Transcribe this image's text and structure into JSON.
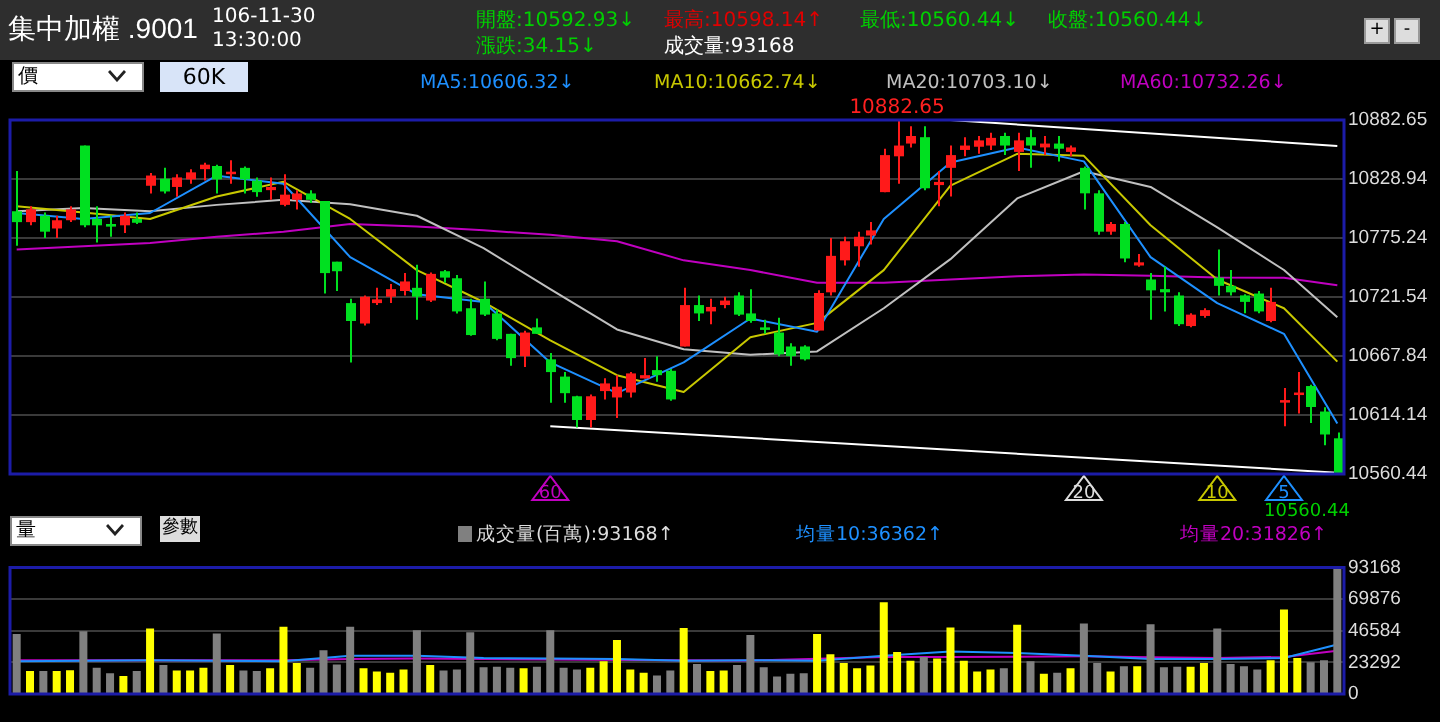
{
  "chart_data": [
    {
      "type": "candlestick",
      "title": "集中加權 .9001",
      "subtitle": "106-11-30 13:30:00",
      "annotations": [
        "開盤:10592.93↓",
        "最高:10598.14↑",
        "最低:10560.44↓",
        "收盤:10560.44↓",
        "漲跌:34.15↓",
        "成交量:93168",
        "價",
        "60K",
        "+",
        "-",
        {
          "text": "10882.65",
          "y": 10882.65
        },
        "10560.44",
        "60",
        "20",
        "10",
        "5"
      ],
      "categories": [
        null,
        null,
        null,
        null,
        null,
        null,
        null,
        null,
        null,
        null,
        null,
        null,
        null,
        null,
        null,
        null,
        null,
        null,
        null,
        null,
        null,
        null,
        null,
        null,
        null,
        null,
        null,
        null,
        null,
        null,
        null,
        null,
        null,
        null,
        null,
        null,
        null,
        null,
        null,
        null,
        null,
        null,
        null,
        null,
        null,
        null,
        null,
        null,
        null,
        null,
        null,
        null,
        null,
        null,
        null,
        null,
        null,
        null,
        null,
        null,
        null,
        null,
        null,
        null,
        null,
        null,
        null,
        null,
        null,
        null,
        null,
        null,
        null,
        null,
        null,
        null,
        null,
        null,
        null,
        null,
        null,
        null,
        null,
        null,
        null,
        null,
        null,
        null,
        null,
        null,
        null,
        null,
        null,
        null,
        null,
        null,
        null,
        null,
        null,
        null
      ],
      "ohlc": [
        [
          10799.6,
          10836.2,
          10768.3,
          10789.7
        ],
        [
          10789.7,
          10804.2,
          10786.8,
          10801.3
        ],
        [
          10795.5,
          10798.4,
          10775.2,
          10781.0
        ],
        [
          10783.9,
          10795.5,
          10775.2,
          10791.4
        ],
        [
          10791.4,
          10804.2,
          10789.7,
          10801.3
        ],
        [
          10859.4,
          10859.4,
          10785.0,
          10786.8
        ],
        [
          10792.6,
          10804.2,
          10771.1,
          10786.8
        ],
        [
          10788.0,
          10795.5,
          10776.3,
          10785.6
        ],
        [
          10786.8,
          10798.4,
          10779.9,
          10795.5
        ],
        [
          10792.6,
          10798.4,
          10788.0,
          10789.1
        ],
        [
          10822.8,
          10834.4,
          10815.8,
          10832.1
        ],
        [
          10829.2,
          10839.1,
          10815.8,
          10817.6
        ],
        [
          10821.7,
          10833.3,
          10812.9,
          10830.4
        ],
        [
          10828.6,
          10837.9,
          10824.6,
          10835.0
        ],
        [
          10837.9,
          10843.7,
          10827.5,
          10842.0
        ],
        [
          10840.8,
          10842.0,
          10815.8,
          10828.6
        ],
        [
          10833.3,
          10846.1,
          10824.6,
          10835.6
        ],
        [
          10839.1,
          10840.3,
          10815.8,
          10828.6
        ],
        [
          10827.5,
          10830.4,
          10812.9,
          10817.0
        ],
        [
          10818.8,
          10830.4,
          10810.0,
          10821.7
        ],
        [
          10805.4,
          10833.3,
          10804.2,
          10814.7
        ],
        [
          10810.0,
          10818.8,
          10801.3,
          10815.8
        ],
        [
          10815.8,
          10818.8,
          10807.1,
          10810.0
        ],
        [
          10808.9,
          10808.9,
          10724.7,
          10743.3
        ],
        [
          10753.7,
          10753.7,
          10727.0,
          10745.0
        ],
        [
          10716.0,
          10720.0,
          10662.0,
          10699.7
        ],
        [
          10697.4,
          10722.9,
          10695.7,
          10721.8
        ],
        [
          10716.0,
          10729.9,
          10714.2,
          10719.4
        ],
        [
          10721.8,
          10733.4,
          10716.0,
          10728.7
        ],
        [
          10727.0,
          10743.3,
          10722.9,
          10735.7
        ],
        [
          10729.9,
          10750.8,
          10700.9,
          10721.8
        ],
        [
          10718.3,
          10743.8,
          10717.1,
          10742.6
        ],
        [
          10745.0,
          10746.1,
          10734.5,
          10739.2
        ],
        [
          10738.6,
          10741.5,
          10706.6,
          10708.4
        ],
        [
          10711.3,
          10720.0,
          10686.3,
          10686.9
        ],
        [
          10720.0,
          10735.7,
          10704.3,
          10705.5
        ],
        [
          10706.6,
          10710.1,
          10682.2,
          10683.4
        ],
        [
          10688.0,
          10688.0,
          10659.0,
          10665.9
        ],
        [
          10667.7,
          10690.9,
          10657.8,
          10689.2
        ],
        [
          10693.9,
          10702.0,
          10688.0,
          10688.0
        ],
        [
          10664.8,
          10670.6,
          10625.3,
          10653.2
        ],
        [
          10649.1,
          10653.2,
          10625.3,
          10634.0
        ],
        [
          10631.2,
          10631.7,
          10602.7,
          10609.6
        ],
        [
          10609.6,
          10632.9,
          10602.7,
          10631.2
        ],
        [
          10635.9,
          10647.5,
          10628.3,
          10642.9
        ],
        [
          10630.1,
          10650.4,
          10611.5,
          10639.9
        ],
        [
          10634.6,
          10653.2,
          10630.1,
          10652.0
        ],
        [
          10647.4,
          10666.0,
          10647.4,
          10650.4
        ],
        [
          10655.0,
          10667.7,
          10644.5,
          10650.4
        ],
        [
          10654.4,
          10656.1,
          10627.1,
          10628.3
        ],
        [
          10676.5,
          10729.9,
          10676.5,
          10714.2
        ],
        [
          10714.2,
          10722.9,
          10699.7,
          10706.6
        ],
        [
          10708.4,
          10720.0,
          10696.8,
          10712.5
        ],
        [
          10714.2,
          10721.8,
          10711.3,
          10718.3
        ],
        [
          10722.9,
          10725.8,
          10704.3,
          10705.5
        ],
        [
          10706.6,
          10728.7,
          10698.0,
          10699.7
        ],
        [
          10693.9,
          10700.9,
          10688.0,
          10691.6
        ],
        [
          10689.2,
          10702.6,
          10667.7,
          10669.4
        ],
        [
          10676.5,
          10679.4,
          10659.0,
          10667.7
        ],
        [
          10676.5,
          10677.7,
          10663.7,
          10664.8
        ],
        [
          10691.0,
          10727.6,
          10691.0,
          10725.2
        ],
        [
          10725.8,
          10775.2,
          10723.0,
          10759.0
        ],
        [
          10754.9,
          10776.4,
          10750.3,
          10772.3
        ],
        [
          10767.7,
          10781.0,
          10749.1,
          10776.4
        ],
        [
          10777.5,
          10789.7,
          10769.4,
          10782.2
        ],
        [
          10817.0,
          10856.5,
          10817.0,
          10850.7
        ],
        [
          10849.6,
          10882.65,
          10824.6,
          10859.4
        ],
        [
          10861.2,
          10876.9,
          10857.7,
          10868.1
        ],
        [
          10867.0,
          10876.9,
          10818.8,
          10820.5
        ],
        [
          10823.4,
          10836.2,
          10804.2,
          10826.3
        ],
        [
          10839.1,
          10859.4,
          10813.0,
          10850.7
        ],
        [
          10855.4,
          10867.0,
          10849.6,
          10859.4
        ],
        [
          10858.3,
          10868.1,
          10851.9,
          10864.1
        ],
        [
          10859.4,
          10871.0,
          10855.4,
          10866.4
        ],
        [
          10868.1,
          10871.0,
          10850.7,
          10859.4
        ],
        [
          10853.6,
          10871.0,
          10836.2,
          10864.1
        ],
        [
          10867.0,
          10874.0,
          10839.1,
          10859.4
        ],
        [
          10857.7,
          10868.1,
          10850.7,
          10861.2
        ],
        [
          10861.2,
          10868.1,
          10844.9,
          10856.5
        ],
        [
          10853.6,
          10859.4,
          10849.6,
          10857.7
        ],
        [
          10839.1,
          10840.3,
          10801.3,
          10815.9
        ],
        [
          10815.9,
          10818.8,
          10778.1,
          10781.0
        ],
        [
          10781.0,
          10789.7,
          10778.1,
          10788.0
        ],
        [
          10788.0,
          10789.7,
          10753.1,
          10756.6
        ],
        [
          10750.2,
          10760.7,
          10749.1,
          10753.1
        ],
        [
          10737.5,
          10743.3,
          10700.9,
          10727.6
        ],
        [
          10728.7,
          10749.1,
          10708.4,
          10725.8
        ],
        [
          10722.9,
          10725.8,
          10695.1,
          10696.8
        ],
        [
          10695.1,
          10706.7,
          10693.9,
          10705.5
        ],
        [
          10704.3,
          10711.3,
          10702.6,
          10709.6
        ],
        [
          10739.2,
          10764.7,
          10722.9,
          10731.7
        ],
        [
          10731.7,
          10746.1,
          10722.9,
          10725.8
        ],
        [
          10723.0,
          10724.0,
          10706.7,
          10717.1
        ],
        [
          10724.7,
          10727.0,
          10706.7,
          10708.4
        ],
        [
          10699.7,
          10729.9,
          10698.5,
          10717.1
        ],
        [
          10625.4,
          10638.8,
          10603.9,
          10627.7
        ],
        [
          10632.3,
          10653.2,
          10615.5,
          10634.6
        ],
        [
          10640.5,
          10641.6,
          10606.8,
          10621.4
        ],
        [
          10617.3,
          10621.3,
          10586.5,
          10596.4
        ],
        [
          10592.93,
          10598.14,
          10560.44,
          10560.44
        ]
      ],
      "series": [
        {
          "type": "line",
          "name": "MA5:10606.32↓",
          "color": "#1e90ff",
          "values": [
            10798,
            null,
            null,
            null,
            null,
            10792.6,
            null,
            null,
            null,
            null,
            10798,
            null,
            null,
            null,
            null,
            10832,
            null,
            null,
            null,
            null,
            10824.6,
            null,
            null,
            null,
            null,
            10757.8,
            null,
            null,
            null,
            null,
            10724,
            null,
            null,
            null,
            null,
            10717,
            null,
            null,
            null,
            null,
            10662,
            null,
            null,
            null,
            null,
            10634,
            null,
            null,
            null,
            null,
            10662,
            null,
            null,
            null,
            null,
            10702,
            null,
            null,
            null,
            null,
            10690,
            null,
            null,
            null,
            null,
            10792.6,
            null,
            null,
            null,
            null,
            10844,
            null,
            null,
            null,
            null,
            10857.7,
            null,
            null,
            null,
            null,
            10845,
            null,
            null,
            null,
            null,
            10757.8,
            null,
            null,
            null,
            null,
            10716,
            null,
            null,
            null,
            null,
            10688,
            null,
            null,
            null,
            10606.32
          ]
        },
        {
          "type": "line",
          "name": "MA10:10662.74↓",
          "color": "#c8c800",
          "values": [
            10804.2,
            null,
            null,
            null,
            null,
            10798.4,
            null,
            null,
            null,
            null,
            10792.6,
            null,
            null,
            null,
            null,
            10813,
            null,
            null,
            null,
            null,
            10826.4,
            null,
            null,
            null,
            null,
            10792.6,
            null,
            null,
            null,
            null,
            10746,
            null,
            null,
            null,
            null,
            10717,
            null,
            null,
            null,
            null,
            10682,
            null,
            null,
            null,
            null,
            10650.4,
            null,
            null,
            null,
            null,
            10635,
            null,
            null,
            null,
            null,
            10685,
            null,
            null,
            null,
            null,
            10698,
            null,
            null,
            null,
            null,
            10746,
            null,
            null,
            null,
            null,
            10823,
            null,
            null,
            null,
            null,
            10851.9,
            null,
            null,
            null,
            null,
            10850,
            null,
            null,
            null,
            null,
            10786.8,
            null,
            null,
            null,
            null,
            10737.5,
            null,
            null,
            null,
            null,
            10711.3,
            null,
            null,
            null,
            10662.74
          ]
        },
        {
          "type": "line",
          "name": "MA20:10703.10↓",
          "color": "#c0c0c0",
          "values": [
            10799.6,
            null,
            null,
            null,
            null,
            10802.5,
            null,
            null,
            null,
            null,
            10799.6,
            null,
            null,
            null,
            null,
            10805.4,
            null,
            null,
            null,
            null,
            10810,
            null,
            null,
            null,
            null,
            10806,
            null,
            null,
            null,
            null,
            10795.5,
            null,
            null,
            null,
            null,
            10766,
            null,
            null,
            null,
            null,
            10728.7,
            null,
            null,
            null,
            null,
            10692,
            null,
            null,
            null,
            null,
            10674,
            null,
            null,
            null,
            null,
            10669,
            null,
            null,
            null,
            null,
            10672,
            null,
            null,
            null,
            null,
            10711.3,
            null,
            null,
            null,
            null,
            10756,
            null,
            null,
            null,
            null,
            10811.3,
            null,
            null,
            null,
            null,
            10836,
            null,
            null,
            null,
            null,
            10821.7,
            null,
            null,
            null,
            null,
            10785,
            null,
            null,
            null,
            null,
            10746.1,
            null,
            null,
            null,
            10703.1
          ]
        },
        {
          "type": "line",
          "name": "MA60:10732.26↓",
          "color": "#c000c0",
          "values": [
            10764.8,
            null,
            null,
            null,
            null,
            10767.7,
            null,
            null,
            null,
            null,
            10770.6,
            null,
            null,
            null,
            null,
            10776.4,
            null,
            null,
            null,
            null,
            10781,
            null,
            null,
            null,
            null,
            10788,
            null,
            null,
            null,
            null,
            10785.7,
            null,
            null,
            null,
            null,
            10782.2,
            null,
            null,
            null,
            null,
            10778.1,
            null,
            null,
            null,
            null,
            10772.3,
            null,
            null,
            null,
            null,
            10754.9,
            null,
            null,
            null,
            null,
            10746.1,
            null,
            null,
            null,
            null,
            10734.5,
            null,
            null,
            null,
            null,
            10734.5,
            null,
            null,
            null,
            null,
            10737.5,
            null,
            null,
            null,
            null,
            10740.4,
            null,
            null,
            null,
            null,
            10742.1,
            null,
            null,
            null,
            null,
            10741,
            null,
            null,
            null,
            null,
            10739.2,
            null,
            null,
            null,
            null,
            10739,
            null,
            null,
            null,
            10732.26
          ]
        },
        {
          "type": "line",
          "color": "#ffffff",
          "values": [
            null,
            null,
            null,
            null,
            null,
            null,
            null,
            null,
            null,
            null,
            null,
            null,
            null,
            null,
            null,
            null,
            null,
            null,
            null,
            null,
            null,
            null,
            null,
            null,
            null,
            null,
            null,
            null,
            null,
            null,
            null,
            null,
            null,
            null,
            null,
            null,
            null,
            null,
            null,
            null,
            null,
            null,
            null,
            null,
            null,
            null,
            null,
            null,
            null,
            null,
            null,
            null,
            null,
            null,
            null,
            null,
            null,
            null,
            null,
            null,
            null,
            null,
            null,
            null,
            null,
            null,
            null,
            null,
            null,
            null,
            10882.65,
            null,
            null,
            null,
            null,
            null,
            null,
            null,
            null,
            null,
            null,
            null,
            null,
            null,
            null,
            null,
            null,
            null,
            null,
            null,
            null,
            null,
            null,
            null,
            null,
            null,
            null,
            null,
            null,
            10859
          ]
        },
        {
          "type": "line",
          "color": "#ffffff",
          "values": [
            null,
            null,
            null,
            null,
            null,
            null,
            null,
            null,
            null,
            null,
            null,
            null,
            null,
            null,
            null,
            null,
            null,
            null,
            null,
            null,
            null,
            null,
            null,
            null,
            null,
            null,
            null,
            null,
            null,
            null,
            null,
            null,
            null,
            null,
            null,
            null,
            null,
            null,
            null,
            null,
            10603.9,
            null,
            null,
            null,
            null,
            null,
            null,
            null,
            null,
            null,
            null,
            null,
            null,
            null,
            null,
            null,
            null,
            null,
            null,
            null,
            null,
            null,
            null,
            null,
            null,
            null,
            null,
            null,
            null,
            null,
            null,
            null,
            null,
            null,
            null,
            null,
            null,
            null,
            null,
            null,
            null,
            null,
            null,
            null,
            null,
            null,
            null,
            null,
            null,
            null,
            null,
            null,
            null,
            null,
            null,
            null,
            null,
            null,
            null,
            10561.6
          ]
        }
      ],
      "ylim": [
        10560.44,
        10882.65
      ],
      "yticks": [
        10560.44,
        10614.14,
        10667.84,
        10721.54,
        10775.24,
        10828.94,
        10882.65
      ],
      "grid": "y",
      "legend": "top",
      "tick_labels": "y"
    },
    {
      "type": "bar",
      "annotations": [
        "量",
        "參數"
      ],
      "categories": [
        null,
        null,
        null,
        null,
        null,
        null,
        null,
        null,
        null,
        null,
        null,
        null,
        null,
        null,
        null,
        null,
        null,
        null,
        null,
        null,
        null,
        null,
        null,
        null,
        null,
        null,
        null,
        null,
        null,
        null,
        null,
        null,
        null,
        null,
        null,
        null,
        null,
        null,
        null,
        null,
        null,
        null,
        null,
        null,
        null,
        null,
        null,
        null,
        null,
        null,
        null,
        null,
        null,
        null,
        null,
        null,
        null,
        null,
        null,
        null,
        null,
        null,
        null,
        null,
        null,
        null,
        null,
        null,
        null,
        null,
        null,
        null,
        null,
        null,
        null,
        null,
        null,
        null,
        null,
        null,
        null,
        null,
        null,
        null,
        null,
        null,
        null,
        null,
        null,
        null,
        null,
        null,
        null,
        null,
        null,
        null,
        null,
        null,
        null,
        null
      ],
      "series": [
        {
          "name": "成交量(百萬):93168↑",
          "values": [
            44200,
            16870,
            16870,
            16870,
            17500,
            46190,
            19280,
            15260,
            13260,
            16870,
            48200,
            21290,
            17270,
            17270,
            19280,
            44580,
            21290,
            17270,
            16870,
            18880,
            49400,
            22900,
            19280,
            32130,
            21690,
            49400,
            18880,
            16470,
            15660,
            18070,
            47000,
            21290,
            17270,
            18070,
            45380,
            19680,
            20080,
            19280,
            18880,
            20080,
            47000,
            19280,
            18070,
            19280,
            24100,
            39760,
            18070,
            15660,
            13660,
            17270,
            48600,
            22090,
            16870,
            17270,
            21290,
            43380,
            19680,
            12850,
            14860,
            15260,
            44180,
            29320,
            22900,
            18880,
            20890,
            67480,
            30930,
            24500,
            27310,
            26110,
            49000,
            24500,
            16470,
            18070,
            18880,
            51010,
            24100,
            14860,
            15660,
            18880,
            51810,
            22900,
            16470,
            20490,
            20490,
            51410,
            19680,
            20080,
            20080,
            22900,
            48200,
            22090,
            20490,
            18070,
            24900,
            62260,
            26510,
            23300,
            24900,
            93168
          ],
          "colors": [
            "#808080",
            "#ffff00",
            "#808080",
            "#ffff00",
            "#ffff00",
            "#808080",
            "#808080",
            "#808080",
            "#ffff00",
            "#808080",
            "#ffff00",
            "#808080",
            "#ffff00",
            "#ffff00",
            "#ffff00",
            "#808080",
            "#ffff00",
            "#808080",
            "#808080",
            "#ffff00",
            "#ffff00",
            "#ffff00",
            "#808080",
            "#808080",
            "#808080",
            "#808080",
            "#ffff00",
            "#ffff00",
            "#ffff00",
            "#ffff00",
            "#808080",
            "#ffff00",
            "#808080",
            "#808080",
            "#808080",
            "#808080",
            "#808080",
            "#808080",
            "#ffff00",
            "#808080",
            "#808080",
            "#808080",
            "#808080",
            "#ffff00",
            "#ffff00",
            "#ffff00",
            "#ffff00",
            "#ffff00",
            "#808080",
            "#808080",
            "#ffff00",
            "#808080",
            "#ffff00",
            "#ffff00",
            "#808080",
            "#808080",
            "#808080",
            "#808080",
            "#808080",
            "#808080",
            "#ffff00",
            "#ffff00",
            "#ffff00",
            "#ffff00",
            "#ffff00",
            "#ffff00",
            "#ffff00",
            "#ffff00",
            "#808080",
            "#ffff00",
            "#ffff00",
            "#ffff00",
            "#ffff00",
            "#ffff00",
            "#808080",
            "#ffff00",
            "#808080",
            "#ffff00",
            "#808080",
            "#ffff00",
            "#808080",
            "#808080",
            "#ffff00",
            "#808080",
            "#ffff00",
            "#808080",
            "#808080",
            "#808080",
            "#ffff00",
            "#ffff00",
            "#808080",
            "#808080",
            "#808080",
            "#808080",
            "#ffff00",
            "#ffff00",
            "#ffff00",
            "#808080",
            "#808080",
            "#808080"
          ]
        },
        {
          "type": "line",
          "name": "均量10:36362↑",
          "color": "#1e90ff",
          "values": [
            24100,
            null,
            null,
            null,
            null,
            24500,
            null,
            null,
            null,
            null,
            24900,
            null,
            null,
            null,
            null,
            24500,
            null,
            null,
            null,
            null,
            24100,
            null,
            null,
            null,
            null,
            28100,
            null,
            null,
            null,
            null,
            28100,
            null,
            null,
            null,
            null,
            26500,
            null,
            null,
            null,
            null,
            26100,
            null,
            null,
            null,
            null,
            25700,
            null,
            null,
            null,
            null,
            24500,
            null,
            null,
            null,
            null,
            24900,
            null,
            null,
            null,
            null,
            24500,
            null,
            null,
            null,
            null,
            28100,
            null,
            null,
            null,
            null,
            31300,
            null,
            null,
            null,
            null,
            30100,
            null,
            null,
            null,
            null,
            28100,
            null,
            null,
            null,
            null,
            25700,
            null,
            null,
            null,
            null,
            25700,
            null,
            null,
            null,
            null,
            26500,
            null,
            null,
            null,
            36362
          ]
        },
        {
          "type": "line",
          "name": "均量20:31826↑",
          "color": "#c000c0",
          "values": [
            24900,
            null,
            null,
            null,
            null,
            24900,
            null,
            null,
            null,
            null,
            null,
            null,
            null,
            null,
            null,
            24900,
            null,
            null,
            null,
            null,
            24900,
            null,
            null,
            null,
            null,
            25700,
            null,
            null,
            null,
            null,
            26100,
            null,
            null,
            null,
            null,
            25700,
            null,
            null,
            null,
            null,
            25300,
            null,
            null,
            null,
            null,
            null,
            null,
            null,
            null,
            null,
            24900,
            null,
            null,
            null,
            null,
            24700,
            null,
            null,
            null,
            null,
            null,
            null,
            null,
            null,
            null,
            27300,
            null,
            null,
            null,
            null,
            27300,
            null,
            null,
            null,
            null,
            27500,
            null,
            null,
            null,
            null,
            27700,
            null,
            null,
            null,
            null,
            27000,
            null,
            null,
            null,
            null,
            26500,
            null,
            null,
            null,
            null,
            27300,
            null,
            null,
            null,
            31826
          ]
        }
      ],
      "ylim": [
        0,
        93168
      ],
      "yticks": [
        0,
        23292,
        46584,
        69876,
        93168
      ],
      "grid": "y",
      "legend": "top",
      "tick_labels": "y"
    }
  ]
}
